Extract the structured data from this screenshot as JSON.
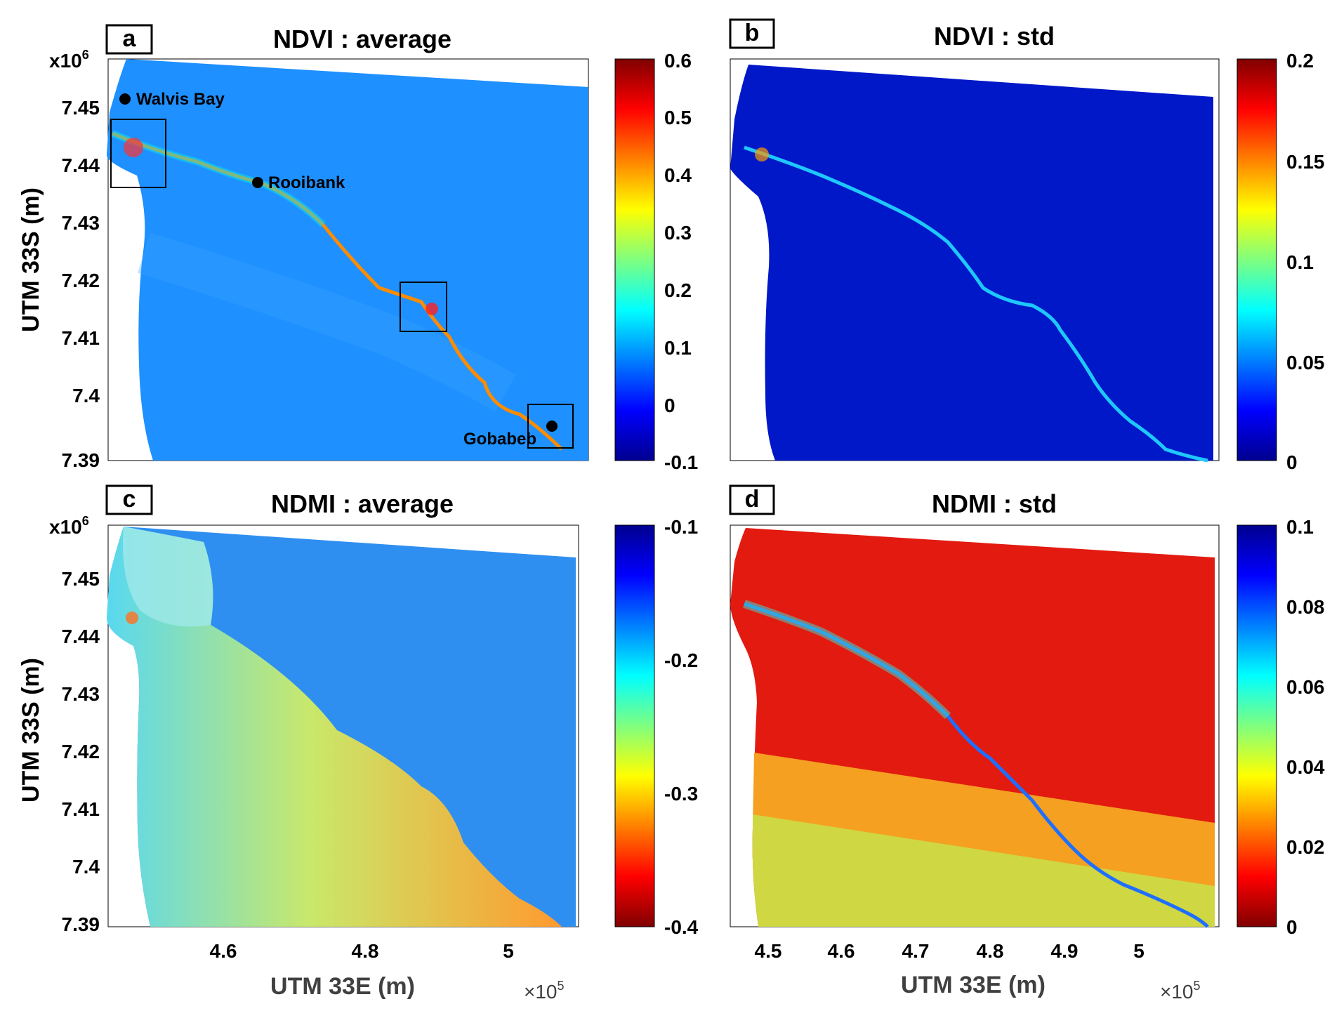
{
  "panels": [
    {
      "letter": "a",
      "title": "NDVI : average",
      "ylabel": "UTM 33S (m)",
      "y_exponent_base": "x10",
      "y_exponent_power": "6",
      "y_ticks": [
        "7.45",
        "7.44",
        "7.43",
        "7.42",
        "7.41",
        "7.4",
        "7.39"
      ],
      "cbar_ticks": [
        "0.6",
        "0.5",
        "0.4",
        "0.3",
        "0.2",
        "0.1",
        "0",
        "-0.1"
      ],
      "locations": [
        "Walvis Bay",
        "Rooibank",
        "Gobabeb"
      ],
      "colormap": "jet"
    },
    {
      "letter": "b",
      "title": "NDVI : std",
      "cbar_ticks": [
        "0.2",
        "0.15",
        "0.1",
        "0.05",
        "0"
      ],
      "colormap": "jet"
    },
    {
      "letter": "c",
      "title": "NDMI : average",
      "ylabel": "UTM 33S (m)",
      "y_exponent_base": "x10",
      "y_exponent_power": "6",
      "y_ticks": [
        "7.45",
        "7.44",
        "7.43",
        "7.42",
        "7.41",
        "7.4",
        "7.39"
      ],
      "x_ticks": [
        "4.6",
        "4.8",
        "5"
      ],
      "xlabel": "UTM 33E (m)",
      "x_exponent_base": "×10",
      "x_exponent_power": "5",
      "cbar_ticks": [
        "-0.1",
        "-0.2",
        "-0.3",
        "-0.4"
      ],
      "colormap": "jet-reversed"
    },
    {
      "letter": "d",
      "title": "NDMI : std",
      "x_ticks": [
        "4.5",
        "4.6",
        "4.7",
        "4.8",
        "4.9",
        "5"
      ],
      "xlabel": "UTM 33E (m)",
      "x_exponent_base": "×10",
      "x_exponent_power": "5",
      "cbar_ticks": [
        "0.1",
        "0.08",
        "0.06",
        "0.04",
        "0.02",
        "0"
      ],
      "colormap": "jet-reversed"
    }
  ],
  "colors": {
    "jet_dark_blue": "#00008f",
    "jet_blue": "#0070ff",
    "jet_cyan": "#00ffff",
    "jet_yellow": "#ffff00",
    "jet_red": "#ff1000",
    "jet_dark_red": "#800000"
  }
}
